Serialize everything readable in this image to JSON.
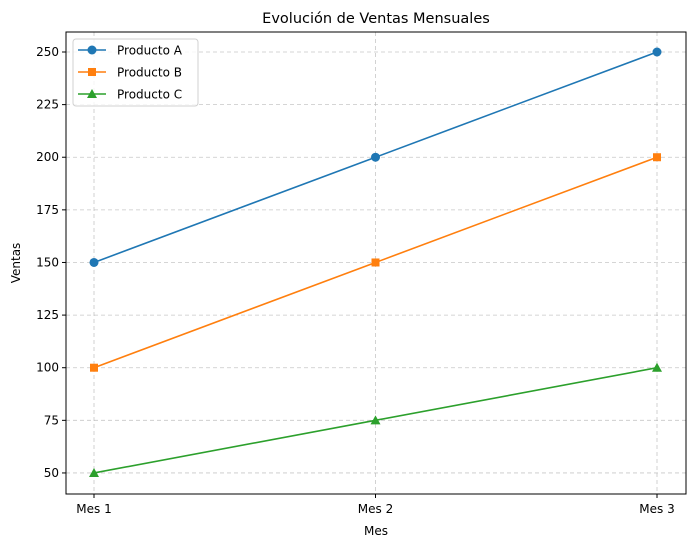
{
  "chart_data": {
    "type": "line",
    "title": "Evolución de Ventas Mensuales",
    "xlabel": "Mes",
    "ylabel": "Ventas",
    "categories": [
      "Mes 1",
      "Mes 2",
      "Mes 3"
    ],
    "ylim": [
      40,
      259.5
    ],
    "yticks": [
      50,
      75,
      100,
      125,
      150,
      175,
      200,
      225,
      250
    ],
    "grid": true,
    "grid_style": "dashed",
    "legend_position": "top-left",
    "series": [
      {
        "name": "Producto A",
        "values": [
          150,
          200,
          250
        ],
        "color": "#1f77b4",
        "marker": "circle"
      },
      {
        "name": "Producto B",
        "values": [
          100,
          150,
          200
        ],
        "color": "#ff7f0e",
        "marker": "square"
      },
      {
        "name": "Producto C",
        "values": [
          50,
          75,
          100
        ],
        "color": "#2ca02c",
        "marker": "triangle"
      }
    ]
  }
}
